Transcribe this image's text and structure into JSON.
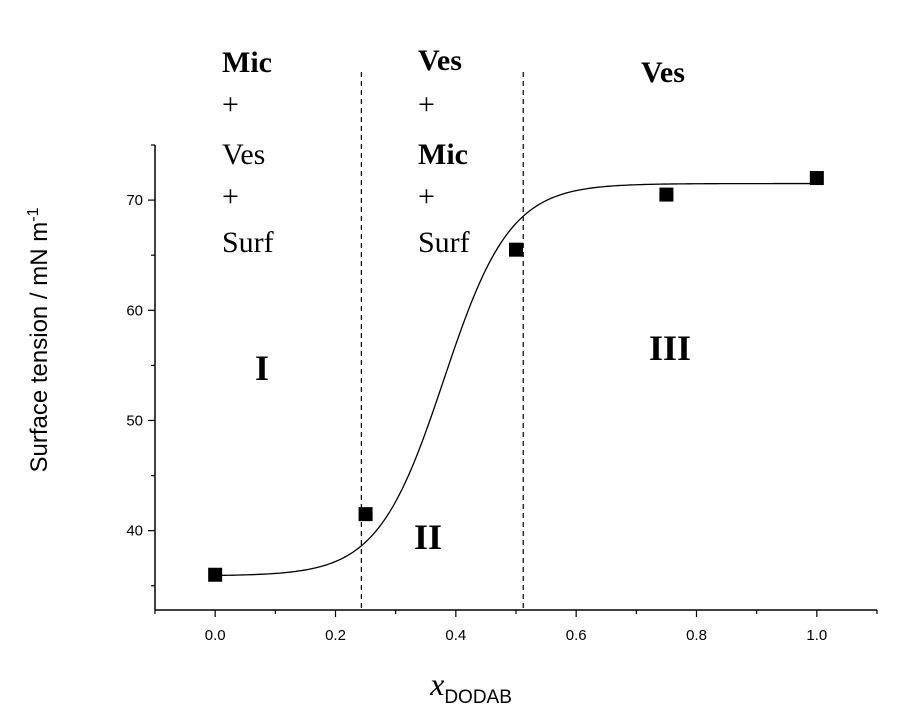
{
  "chart_data": {
    "type": "scatter",
    "xlabel_main": "x",
    "xlabel_sub": "DODAB",
    "ylabel": "Surface tension / mN m",
    "ylabel_sup": "-1",
    "xlim": [
      -0.1,
      1.1
    ],
    "ylim": [
      32.8,
      75
    ],
    "x_ticks": [
      0.0,
      0.2,
      0.4,
      0.6,
      0.8,
      1.0
    ],
    "x_tick_labels": [
      "0.0",
      "0.2",
      "0.4",
      "0.6",
      "0.8",
      "1.0"
    ],
    "y_ticks": [
      40,
      50,
      60,
      70
    ],
    "y_tick_labels": [
      "40",
      "50",
      "60",
      "70"
    ],
    "points": [
      {
        "x": 0.0,
        "y": 36.0
      },
      {
        "x": 0.25,
        "y": 41.5
      },
      {
        "x": 0.5,
        "y": 65.5
      },
      {
        "x": 0.75,
        "y": 70.5
      },
      {
        "x": 1.0,
        "y": 72.0
      }
    ],
    "fit_curve": {
      "type": "sigmoid",
      "x_range": [
        0.0,
        1.0
      ],
      "lower": 35.9,
      "upper": 71.5,
      "midpoint": 0.38,
      "width": 0.055
    },
    "vlines": [
      0.243,
      0.512
    ],
    "regions": [
      {
        "label": "I",
        "components": [
          {
            "text": "Mic",
            "bold": true
          },
          {
            "text": "+",
            "bold": false
          },
          {
            "text": "Ves",
            "bold": false
          },
          {
            "text": "+",
            "bold": false
          },
          {
            "text": "Surf",
            "bold": false
          }
        ]
      },
      {
        "label": "II",
        "components": [
          {
            "text": "Ves",
            "bold": true
          },
          {
            "text": "+",
            "bold": false
          },
          {
            "text": "Mic",
            "bold": true
          },
          {
            "text": "+",
            "bold": false
          },
          {
            "text": "Surf",
            "bold": false
          }
        ]
      },
      {
        "label": "III",
        "components": [
          {
            "text": "Ves",
            "bold": true
          }
        ]
      }
    ]
  }
}
